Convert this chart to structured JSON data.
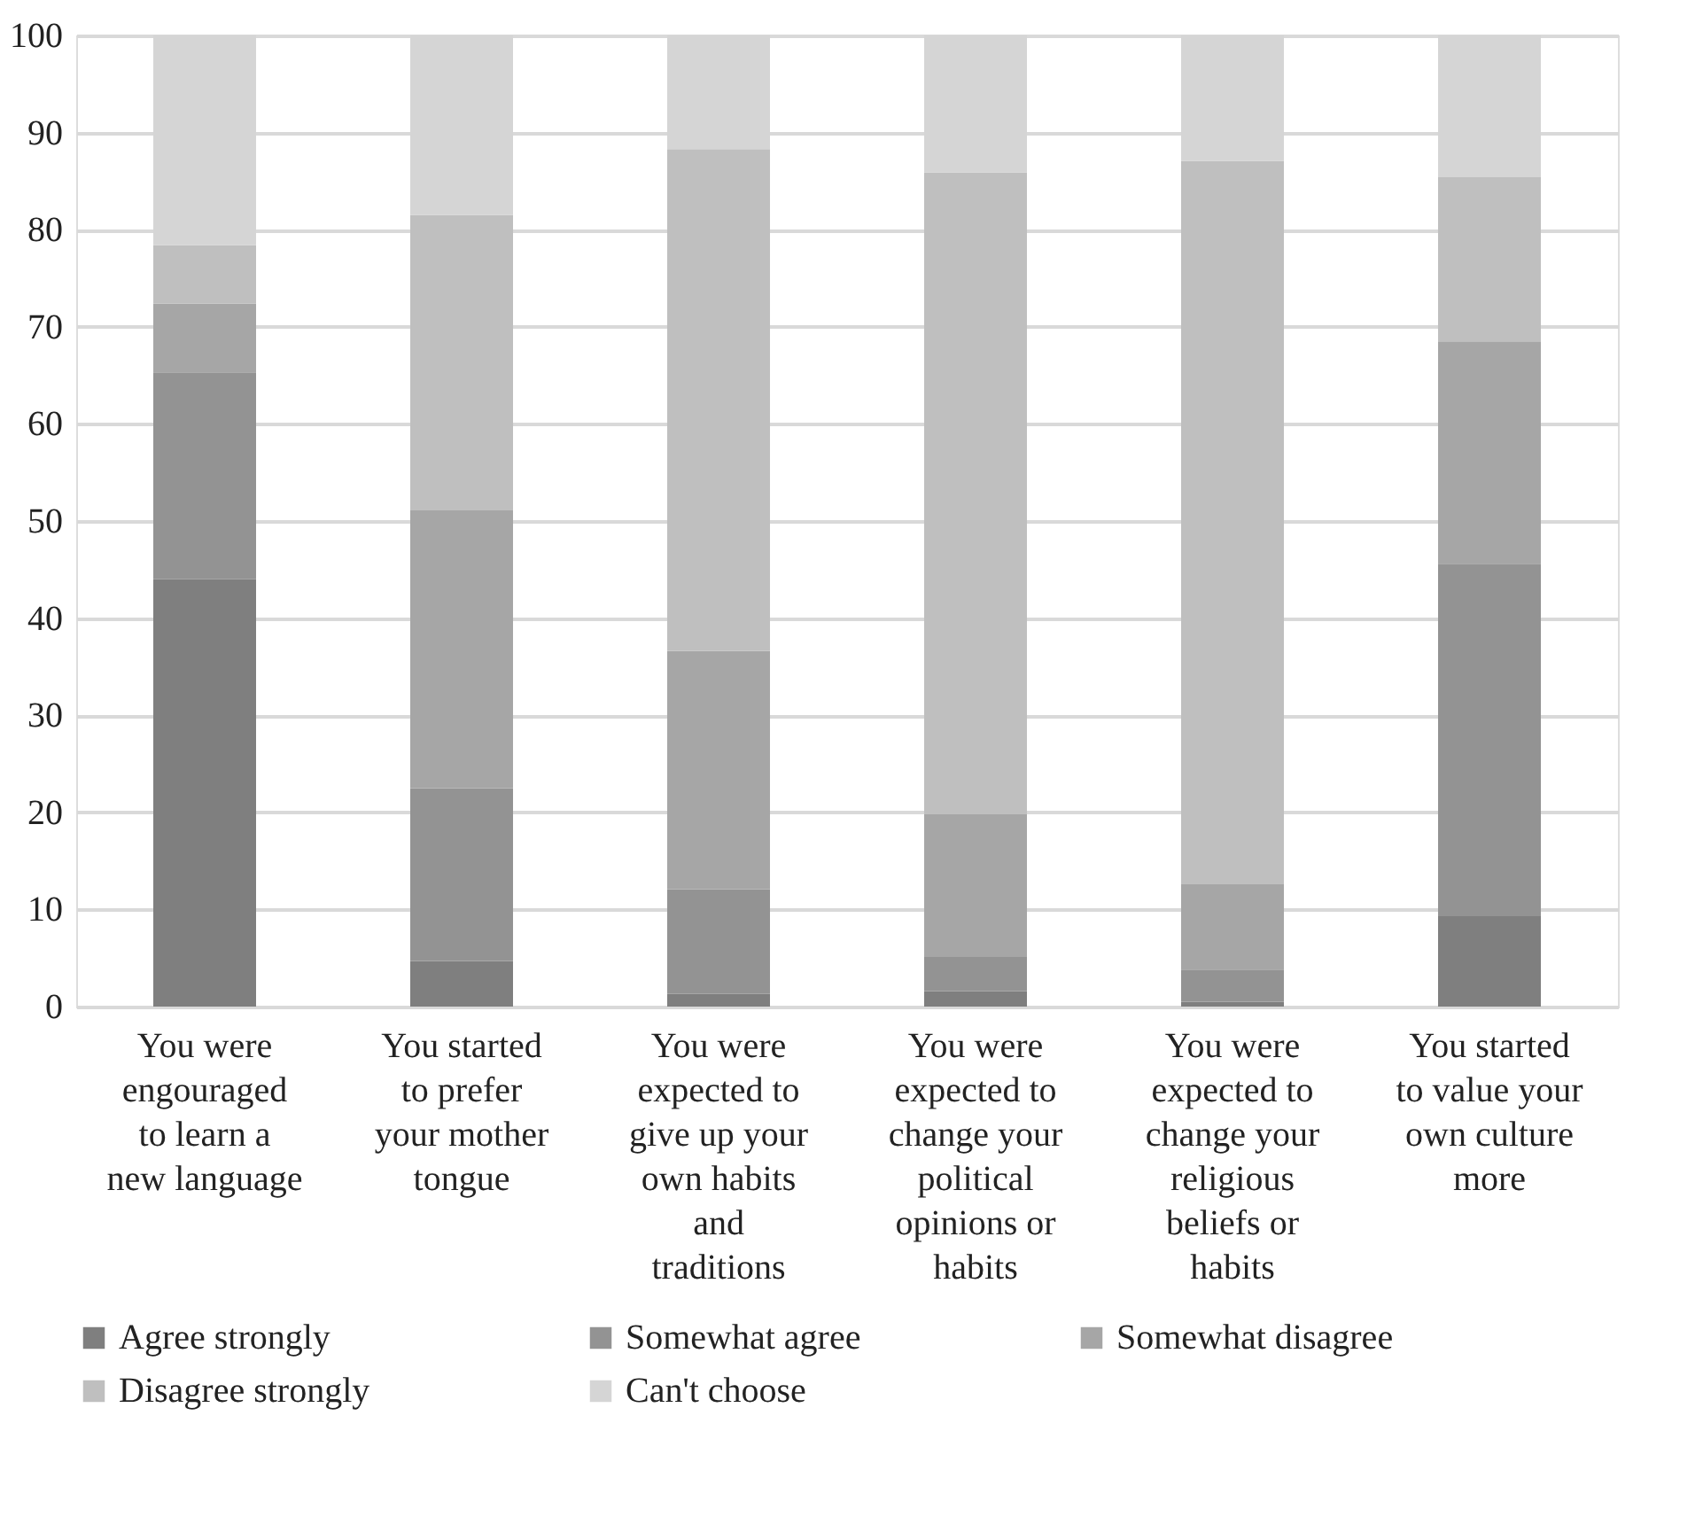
{
  "chart_data": {
    "type": "bar",
    "stacked": true,
    "categories": [
      "You were\nengouraged\nto learn a\nnew language",
      "You started\nto prefer\nyour mother\ntongue",
      "You were\nexpected to\ngive up your\nown habits\nand\ntraditions",
      "You were\nexpected to\nchange your\npolitical\nopinions or\nhabits",
      "You were\nexpected to\nchange your\nreligious\nbeliefs or\nhabits",
      "You started\nto value your\nown culture\nmore"
    ],
    "series": [
      {
        "name": "Agree strongly",
        "color": "#7f7f7f",
        "values": [
          44.0,
          4.7,
          1.3,
          1.6,
          0.5,
          9.3
        ]
      },
      {
        "name": "Somewhat agree",
        "color": "#939393",
        "values": [
          21.3,
          17.8,
          10.8,
          3.5,
          3.3,
          36.3
        ]
      },
      {
        "name": "Somewhat disagree",
        "color": "#a6a6a6",
        "values": [
          7.1,
          28.6,
          24.5,
          14.7,
          8.8,
          22.9
        ]
      },
      {
        "name": "Disagree strongly",
        "color": "#bfbfbf",
        "values": [
          6.0,
          30.4,
          51.7,
          66.1,
          74.5,
          16.9
        ]
      },
      {
        "name": "Can't choose",
        "color": "#d5d5d5",
        "values": [
          21.6,
          18.5,
          11.7,
          14.1,
          12.9,
          14.6
        ]
      }
    ],
    "ylim": [
      0,
      100
    ],
    "yticks": [
      0,
      10,
      20,
      30,
      40,
      50,
      60,
      70,
      80,
      90,
      100
    ],
    "grid": "y",
    "legend": "bottom"
  }
}
